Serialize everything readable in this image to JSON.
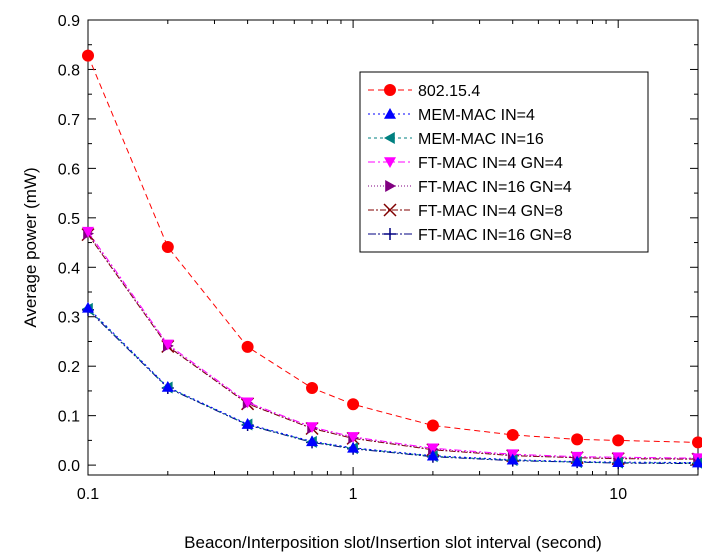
{
  "chart_data": {
    "type": "line",
    "xlabel": "Beacon/Interposition slot/Insertion slot interval (second)",
    "ylabel": "Average power (mW)",
    "xscale": "log",
    "xlim": [
      0.1,
      20
    ],
    "ylim": [
      -0.02,
      0.9
    ],
    "x_ticks": [
      "0.1",
      "1",
      "10"
    ],
    "y_ticks": [
      "0.0",
      "0.1",
      "0.2",
      "0.3",
      "0.4",
      "0.5",
      "0.6",
      "0.7",
      "0.8",
      "0.9"
    ],
    "grid": false,
    "legend_position": "upper-right",
    "x": [
      0.1,
      0.2,
      0.4,
      0.7,
      1,
      2,
      4,
      7,
      10,
      20
    ],
    "series": [
      {
        "name": "802.15.4",
        "color": "#ff0000",
        "marker": "circle",
        "dash": "6,4",
        "values": [
          0.828,
          0.441,
          0.239,
          0.156,
          0.123,
          0.08,
          0.061,
          0.052,
          0.05,
          0.046
        ]
      },
      {
        "name": "MEM-MAC IN=4",
        "color": "#0000ff",
        "marker": "triangle-up",
        "dash": "2,3",
        "values": [
          0.318,
          0.158,
          0.083,
          0.048,
          0.035,
          0.019,
          0.011,
          0.007,
          0.006,
          0.005
        ]
      },
      {
        "name": "MEM-MAC IN=16",
        "color": "#008080",
        "marker": "triangle-left",
        "dash": "3,3",
        "values": [
          0.316,
          0.157,
          0.082,
          0.047,
          0.034,
          0.018,
          0.01,
          0.006,
          0.005,
          0.004
        ]
      },
      {
        "name": "FT-MAC IN=4 GN=4",
        "color": "#ff00ff",
        "marker": "triangle-down",
        "dash": "7,3,2,3",
        "values": [
          0.472,
          0.244,
          0.127,
          0.077,
          0.057,
          0.034,
          0.022,
          0.017,
          0.016,
          0.014
        ]
      },
      {
        "name": "FT-MAC IN=16 GN=4",
        "color": "#800080",
        "marker": "triangle-right",
        "dash": "1,2",
        "values": [
          0.468,
          0.241,
          0.125,
          0.075,
          0.055,
          0.032,
          0.02,
          0.015,
          0.014,
          0.013
        ]
      },
      {
        "name": "FT-MAC IN=4 GN=8",
        "color": "#800000",
        "marker": "x",
        "dash": "6,2,2,2",
        "values": [
          0.466,
          0.24,
          0.124,
          0.074,
          0.054,
          0.031,
          0.019,
          0.015,
          0.013,
          0.012
        ]
      },
      {
        "name": "FT-MAC IN=16 GN=8",
        "color": "#000080",
        "marker": "plus",
        "dash": "8,2,2,2,2,2",
        "values": [
          0.314,
          0.156,
          0.081,
          0.046,
          0.033,
          0.017,
          0.009,
          0.006,
          0.004,
          0.003
        ]
      }
    ]
  }
}
